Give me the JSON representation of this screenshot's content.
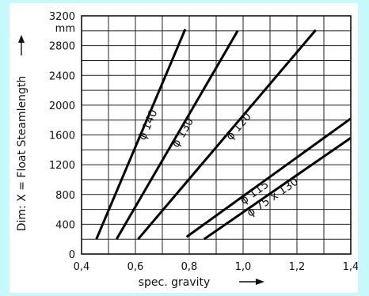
{
  "chart_data": {
    "type": "line",
    "xlabel": "spec. gravity",
    "ylabel": "Dim: X = Float Steamlength",
    "y_unit": "mm",
    "xlim": [
      0.4,
      1.4
    ],
    "ylim": [
      0,
      3200
    ],
    "x_ticks": [
      0.4,
      0.6,
      0.8,
      1.0,
      1.2,
      1.4
    ],
    "x_tick_labels": [
      "0,4",
      "0,6",
      "0,8",
      "1,0",
      "1,2",
      "1,4"
    ],
    "y_ticks": [
      0,
      400,
      800,
      1200,
      1600,
      2000,
      2400,
      2800,
      3200
    ],
    "y_tick_labels": [
      "0",
      "400",
      "800",
      "1200",
      "1600",
      "2000",
      "2400",
      "2800",
      "3200"
    ],
    "grid": true,
    "series": [
      {
        "name": "ϕ 140",
        "x": [
          0.455,
          0.785
        ],
        "y": [
          200,
          3020
        ]
      },
      {
        "name": "ϕ 130",
        "x": [
          0.53,
          0.98
        ],
        "y": [
          200,
          3000
        ]
      },
      {
        "name": "ϕ 120",
        "x": [
          0.61,
          1.27
        ],
        "y": [
          200,
          3010
        ]
      },
      {
        "name": "ϕ 115",
        "x": [
          0.79,
          1.4
        ],
        "y": [
          230,
          1820
        ]
      },
      {
        "name": "ϕ 75 x 130",
        "x": [
          0.855,
          1.4
        ],
        "y": [
          200,
          1560
        ]
      }
    ]
  }
}
